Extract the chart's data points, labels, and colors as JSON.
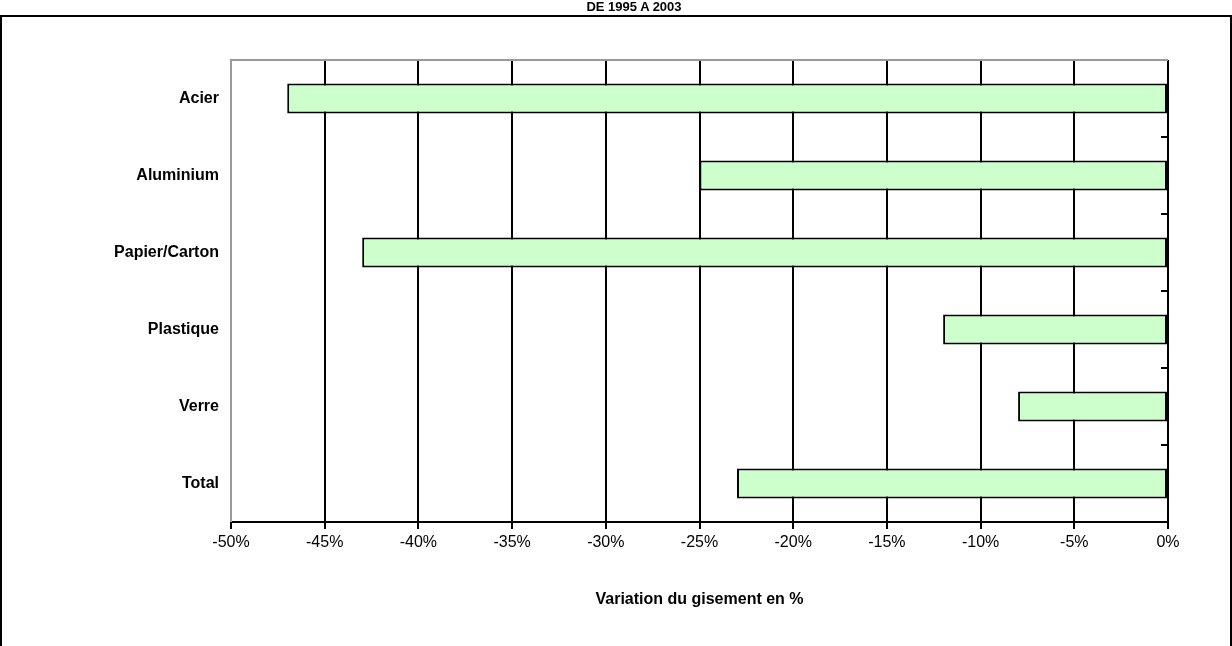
{
  "chart_data": {
    "type": "bar",
    "orientation": "horizontal",
    "title": "DE 1995 A 2003",
    "xlabel": "Variation du gisement en %",
    "categories": [
      "Acier",
      "Aluminium",
      "Papier/Carton",
      "Plastique",
      "Verre",
      "Total"
    ],
    "values": [
      -47,
      -25,
      -43,
      -12,
      -8,
      -23
    ],
    "color": "#ccffcc",
    "xlim": [
      -50,
      0
    ],
    "xticks": [
      {
        "value": -50,
        "label": "-50%"
      },
      {
        "value": -45,
        "label": "-45%"
      },
      {
        "value": -40,
        "label": "-40%"
      },
      {
        "value": -35,
        "label": "-35%"
      },
      {
        "value": -30,
        "label": "-30%"
      },
      {
        "value": -25,
        "label": "-25%"
      },
      {
        "value": -20,
        "label": "-20%"
      },
      {
        "value": -15,
        "label": "-15%"
      },
      {
        "value": -10,
        "label": "-10%"
      },
      {
        "value": -5,
        "label": "-5%"
      },
      {
        "value": 0,
        "label": "0%"
      }
    ],
    "grid": "x"
  }
}
